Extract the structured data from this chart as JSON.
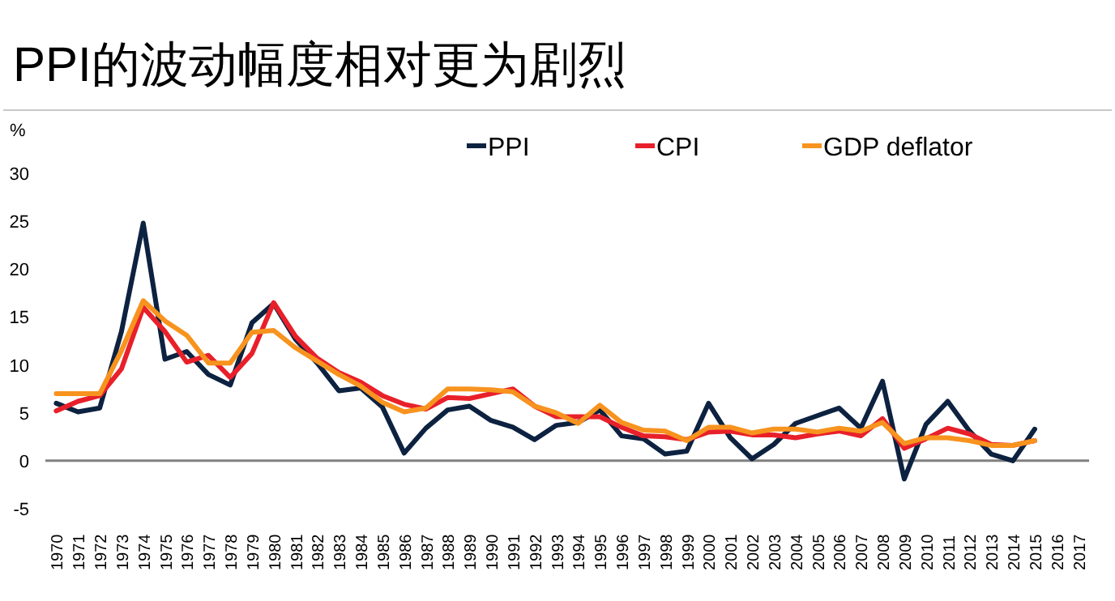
{
  "chart_data": {
    "type": "line",
    "title": "PPI的波动幅度相对更为剧烈",
    "ylabel": "%",
    "categories": [
      "1970",
      "1971",
      "1972",
      "1973",
      "1974",
      "1975",
      "1976",
      "1977",
      "1978",
      "1979",
      "1980",
      "1981",
      "1982",
      "1983",
      "1984",
      "1985",
      "1986",
      "1987",
      "1988",
      "1989",
      "1990",
      "1991",
      "1992",
      "1993",
      "1994",
      "1995",
      "1996",
      "1997",
      "1998",
      "1999",
      "2000",
      "2001",
      "2002",
      "2003",
      "2004",
      "2005",
      "2006",
      "2007",
      "2008",
      "2009",
      "2010",
      "2011",
      "2012",
      "2013",
      "2014",
      "2015",
      "2016",
      "2017"
    ],
    "series": [
      {
        "name": "PPI",
        "color": "#0d2240",
        "values": [
          6.0,
          5.1,
          5.5,
          13.5,
          24.8,
          10.6,
          11.4,
          9.0,
          7.9,
          14.4,
          16.4,
          12.7,
          10.2,
          7.3,
          7.6,
          5.6,
          0.8,
          3.4,
          5.3,
          5.7,
          4.2,
          3.5,
          2.2,
          3.7,
          4.0,
          5.3,
          2.6,
          2.3,
          0.7,
          1.0,
          6.0,
          2.4,
          0.2,
          1.7,
          3.9,
          4.7,
          5.5,
          3.4,
          8.3,
          -1.9,
          3.8,
          6.2,
          3.1,
          0.7,
          0.0,
          3.3,
          null,
          null
        ]
      },
      {
        "name": "CPI",
        "color": "#e8202a",
        "values": [
          5.2,
          6.2,
          6.8,
          9.6,
          16.0,
          13.5,
          10.3,
          11.0,
          8.7,
          11.2,
          16.5,
          13.0,
          10.7,
          9.2,
          8.2,
          6.8,
          5.9,
          5.4,
          6.6,
          6.5,
          7.0,
          7.5,
          5.7,
          4.6,
          4.6,
          4.6,
          3.5,
          2.6,
          2.5,
          2.2,
          3.0,
          3.1,
          2.7,
          2.7,
          2.4,
          2.8,
          3.1,
          2.6,
          4.4,
          1.3,
          2.3,
          3.4,
          2.8,
          1.7,
          1.6,
          2.1,
          null,
          null
        ]
      },
      {
        "name": "GDP deflator",
        "color": "#f7931e",
        "values": [
          7.0,
          7.0,
          7.0,
          11.5,
          16.7,
          14.6,
          13.1,
          10.2,
          10.2,
          13.4,
          13.6,
          11.8,
          10.4,
          9.0,
          7.8,
          6.1,
          5.1,
          5.5,
          7.5,
          7.5,
          7.4,
          7.2,
          5.7,
          5.0,
          3.9,
          5.8,
          4.0,
          3.2,
          3.1,
          2.1,
          3.5,
          3.5,
          2.9,
          3.3,
          3.3,
          3.0,
          3.4,
          3.1,
          4.0,
          1.8,
          2.4,
          2.4,
          2.1,
          1.6,
          1.6,
          2.1,
          null,
          null
        ]
      }
    ],
    "ylim": [
      -5,
      30
    ],
    "yticks": [
      -5,
      0,
      5,
      10,
      15,
      20,
      25,
      30
    ],
    "ref_lines": [
      {
        "axis": "y",
        "value": 0,
        "color": "#808080"
      }
    ],
    "grid": false,
    "legend": "top right",
    "marker": "none",
    "line_style": "solid"
  }
}
